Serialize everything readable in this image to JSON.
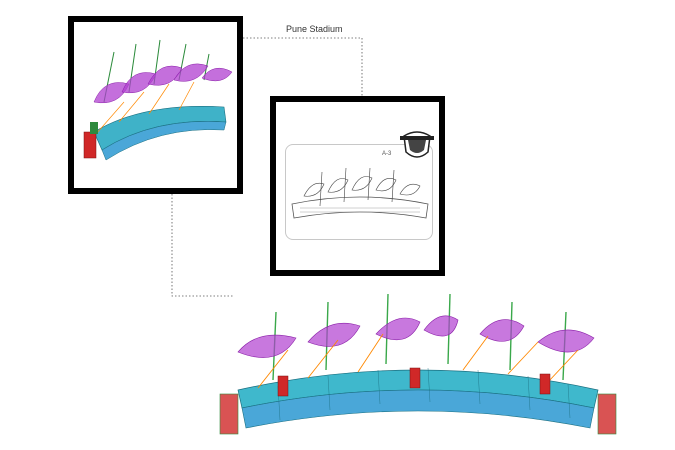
{
  "title": "Pune Stadium",
  "sheet_tag": "A-3"
}
